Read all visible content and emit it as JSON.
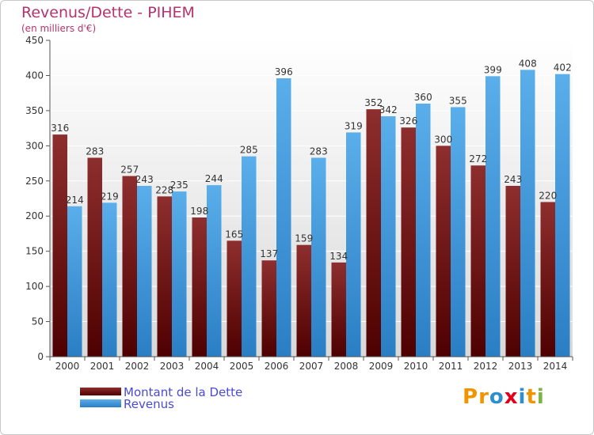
{
  "title": "Revenus/Dette - PIHEM",
  "subtitle": "(en milliers d'€)",
  "logo": {
    "text": "Proxiti",
    "letters": [
      "P",
      "r",
      "o",
      "x",
      "i",
      "t",
      "i"
    ],
    "colors": [
      "#f29400",
      "#f29400",
      "#2e8fcf",
      "#e3001b",
      "#2e8fcf",
      "#f29400",
      "#7cb342"
    ]
  },
  "colors": {
    "dette": "#8b1a1a",
    "revenus": "#3a9ae0",
    "title": "#b5326e",
    "legend_text": "#4a4ad8"
  },
  "chart_data": {
    "type": "bar",
    "title": "Revenus/Dette - PIHEM",
    "ylabel": "(en milliers d'€)",
    "ylim": [
      0,
      450
    ],
    "yticks": [
      0,
      50,
      100,
      150,
      200,
      250,
      300,
      350,
      400,
      450
    ],
    "grid": true,
    "legend_position": "bottom-left",
    "categories": [
      "2000",
      "2001",
      "2002",
      "2003",
      "2004",
      "2005",
      "2006",
      "2007",
      "2008",
      "2009",
      "2010",
      "2011",
      "2012",
      "2013",
      "2014"
    ],
    "series": [
      {
        "name": "Montant de la Dette",
        "values": [
          316,
          283,
          257,
          228,
          198,
          165,
          137,
          159,
          134,
          352,
          326,
          300,
          272,
          243,
          220
        ]
      },
      {
        "name": "Revenus",
        "values": [
          214,
          219,
          243,
          235,
          244,
          285,
          396,
          283,
          319,
          342,
          360,
          355,
          399,
          408,
          402
        ]
      }
    ]
  }
}
